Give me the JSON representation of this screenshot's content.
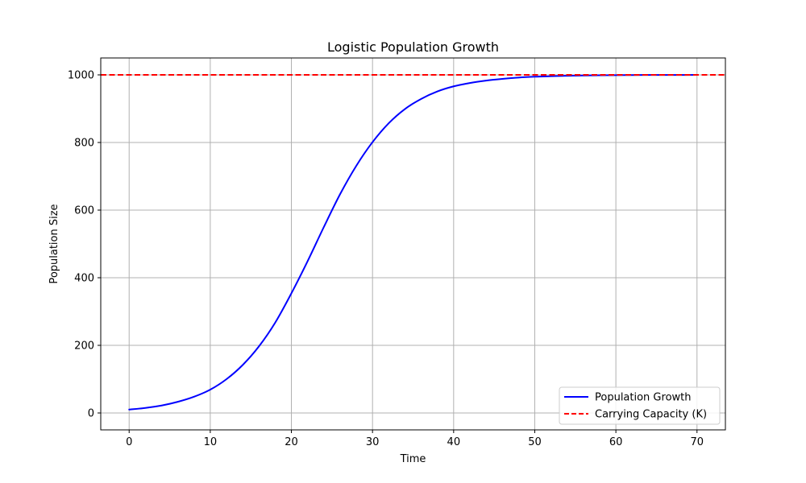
{
  "chart_data": {
    "type": "line",
    "title": "Logistic Population Growth",
    "xlabel": "Time",
    "ylabel": "Population Size",
    "xlim": [
      -3.5,
      73.5
    ],
    "ylim": [
      -50,
      1050
    ],
    "xticks": [
      0,
      10,
      20,
      30,
      40,
      50,
      60,
      70
    ],
    "yticks": [
      0,
      200,
      400,
      600,
      800,
      1000
    ],
    "grid": true,
    "legend_position": "lower-right",
    "series": [
      {
        "name": "Population Growth",
        "kind": "line",
        "style": "solid",
        "color": "#0000ff",
        "x": [
          0,
          2,
          4,
          6,
          8,
          10,
          12,
          14,
          16,
          18,
          20,
          22,
          24,
          26,
          28,
          30,
          32,
          34,
          36,
          38,
          40,
          42,
          44,
          46,
          48,
          50,
          52,
          54,
          56,
          58,
          60,
          62,
          64,
          66,
          68,
          70
        ],
        "y": [
          10,
          15,
          22,
          33,
          48,
          69,
          100,
          142,
          197,
          267,
          354,
          449,
          550,
          647,
          731,
          801,
          857,
          899,
          929,
          951,
          966,
          976,
          983,
          988,
          992,
          994.5,
          996,
          997.3,
          998.2,
          998.8,
          999.2,
          999.4,
          999.6,
          999.7,
          999.8,
          999.9
        ]
      },
      {
        "name": "Carrying Capacity (K)",
        "kind": "hline",
        "style": "dashed",
        "color": "#ff0000",
        "y": 1000
      }
    ]
  }
}
